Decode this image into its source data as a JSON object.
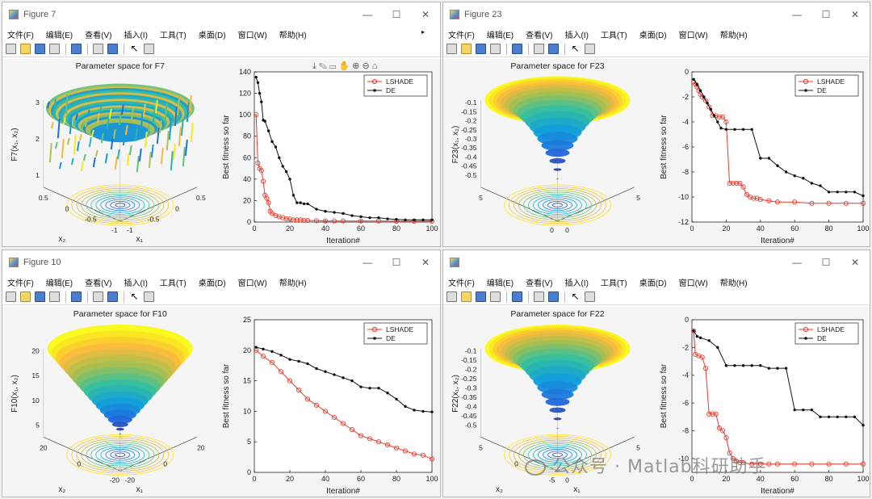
{
  "menu": [
    "文件(F)",
    "编辑(E)",
    "查看(V)",
    "插入(I)",
    "工具(T)",
    "桌面(D)",
    "窗口(W)",
    "帮助(H)"
  ],
  "windows": [
    {
      "title": "Figure 7",
      "surface_title": "Parameter space for F7",
      "surface_zlabel": "F7(x₁, x₂)",
      "surface_zticks": [
        "3",
        "2",
        "1"
      ],
      "surface_x1label": "x₁",
      "surface_x2label": "x₂",
      "surface_x1ticks": [
        "-1",
        "-0.5",
        "0",
        "0.5"
      ],
      "surface_x2ticks": [
        "0.5",
        "0",
        "-0.5",
        "-1"
      ],
      "surface_type": "rough"
    },
    {
      "title": "Figure 23",
      "surface_title": "Parameter space for F23",
      "surface_zlabel": "F23(x₁, x₂)",
      "surface_zticks": [
        "-0.1",
        "-0.15",
        "-0.2",
        "-0.25",
        "-0.3",
        "-0.35",
        "-0.4",
        "-0.45",
        "-0.5"
      ],
      "surface_x1label": "",
      "surface_x2label": "",
      "surface_x1ticks": [
        "0",
        "5"
      ],
      "surface_x2ticks": [
        "5",
        "0"
      ],
      "surface_type": "well"
    },
    {
      "title": "Figure 10",
      "surface_title": "Parameter space for F10",
      "surface_zlabel": "F10(x₁, x₂)",
      "surface_zticks": [
        "20",
        "15",
        "10",
        "5"
      ],
      "surface_x1label": "x₁",
      "surface_x2label": "x₂",
      "surface_x1ticks": [
        "-20",
        "0",
        "20"
      ],
      "surface_x2ticks": [
        "20",
        "0",
        "-20"
      ],
      "surface_type": "cone"
    },
    {
      "title": "",
      "surface_title": "Parameter space for F22",
      "surface_zlabel": "F22(x₁, x₂)",
      "surface_zticks": [
        "-0.1",
        "-0.15",
        "-0.2",
        "-0.25",
        "-0.3",
        "-0.35",
        "-0.4",
        "-0.45",
        "-0.5"
      ],
      "surface_x1label": "x₁",
      "surface_x2label": "x₂",
      "surface_x1ticks": [
        "0",
        "5"
      ],
      "surface_x2ticks": [
        "5",
        "0",
        "-5"
      ],
      "surface_type": "well"
    }
  ],
  "chart_data": [
    {
      "type": "line",
      "ylabel": "Best fitness so far",
      "xlabel": "Iteration#",
      "xlim": [
        0,
        100
      ],
      "ylim": [
        0,
        140
      ],
      "xticks": [
        "0",
        "20",
        "40",
        "60",
        "80",
        "100"
      ],
      "yticks": [
        "0",
        "20",
        "40",
        "60",
        "80",
        "100",
        "120",
        "140"
      ],
      "legend_position": "top-right",
      "series": [
        {
          "name": "LSHADE",
          "color": "#e8392b",
          "marker": "circle",
          "x": [
            1,
            2,
            3,
            4,
            5,
            6,
            7,
            8,
            9,
            10,
            12,
            14,
            16,
            18,
            20,
            22,
            24,
            26,
            28,
            30,
            35,
            40,
            45,
            50,
            60,
            70,
            80,
            90,
            100
          ],
          "y": [
            100,
            55,
            50,
            48,
            38,
            25,
            22,
            18,
            10,
            8,
            6,
            5,
            4,
            3,
            3,
            2,
            2,
            2,
            1.5,
            1.5,
            1.2,
            1,
            1,
            1,
            1,
            1,
            0.8,
            0.8,
            0.8
          ]
        },
        {
          "name": "DE",
          "color": "#111111",
          "marker": "dot",
          "x": [
            1,
            2,
            3,
            4,
            5,
            6,
            8,
            10,
            12,
            14,
            16,
            18,
            20,
            22,
            24,
            26,
            28,
            30,
            35,
            40,
            45,
            50,
            55,
            60,
            65,
            70,
            75,
            80,
            85,
            90,
            95,
            100
          ],
          "y": [
            135,
            130,
            120,
            112,
            95,
            94,
            85,
            75,
            70,
            60,
            52,
            47,
            40,
            25,
            18,
            18,
            17,
            17,
            12,
            10,
            9,
            8,
            6,
            5,
            4,
            4,
            3,
            2.5,
            2,
            2,
            2,
            2
          ]
        }
      ]
    },
    {
      "type": "line",
      "ylabel": "Best fitness so far",
      "xlabel": "Iteration#",
      "xlim": [
        0,
        100
      ],
      "ylim": [
        -12,
        0
      ],
      "xticks": [
        "0",
        "20",
        "40",
        "60",
        "80",
        "100"
      ],
      "yticks": [
        "0",
        "-2",
        "-4",
        "-6",
        "-8",
        "-10",
        "-12"
      ],
      "legend_position": "top-right",
      "series": [
        {
          "name": "LSHADE",
          "color": "#e8392b",
          "marker": "circle",
          "x": [
            1,
            2,
            3,
            4,
            5,
            6,
            8,
            10,
            12,
            14,
            16,
            18,
            20,
            22,
            24,
            26,
            28,
            30,
            32,
            34,
            36,
            38,
            40,
            45,
            50,
            60,
            70,
            80,
            90,
            100
          ],
          "y": [
            -0.8,
            -1,
            -1.2,
            -1.5,
            -1.8,
            -2,
            -2.3,
            -2.8,
            -3.5,
            -3.5,
            -3.6,
            -3.6,
            -4,
            -8.9,
            -8.9,
            -8.9,
            -8.9,
            -9.2,
            -9.8,
            -10,
            -10.1,
            -10.1,
            -10.2,
            -10.3,
            -10.4,
            -10.4,
            -10.5,
            -10.5,
            -10.5,
            -10.5
          ]
        },
        {
          "name": "DE",
          "color": "#111111",
          "marker": "dot",
          "x": [
            1,
            3,
            5,
            7,
            9,
            11,
            13,
            15,
            17,
            20,
            25,
            30,
            35,
            40,
            45,
            50,
            55,
            60,
            65,
            70,
            75,
            80,
            85,
            90,
            95,
            100
          ],
          "y": [
            -0.6,
            -1,
            -1.5,
            -2,
            -2.5,
            -3,
            -3.5,
            -4,
            -4.5,
            -4.6,
            -4.6,
            -4.6,
            -4.6,
            -6.9,
            -6.9,
            -7.5,
            -8,
            -8.3,
            -8.5,
            -8.9,
            -9.1,
            -9.6,
            -9.6,
            -9.6,
            -9.6,
            -9.9
          ]
        }
      ]
    },
    {
      "type": "line",
      "ylabel": "Best fitness so far",
      "xlabel": "Iteration#",
      "xlim": [
        0,
        100
      ],
      "ylim": [
        0,
        25
      ],
      "xticks": [
        "0",
        "20",
        "40",
        "60",
        "80",
        "100"
      ],
      "yticks": [
        "0",
        "5",
        "10",
        "15",
        "20",
        "25"
      ],
      "legend_position": "top-right",
      "series": [
        {
          "name": "LSHADE",
          "color": "#e8392b",
          "marker": "circle",
          "x": [
            1,
            5,
            10,
            15,
            20,
            25,
            30,
            35,
            40,
            45,
            50,
            55,
            60,
            65,
            70,
            75,
            80,
            85,
            90,
            95,
            100
          ],
          "y": [
            20,
            19,
            18,
            16.5,
            15,
            13.5,
            12,
            11,
            10,
            9,
            8,
            7,
            6,
            5.5,
            5,
            4.5,
            4,
            3.5,
            3,
            2.8,
            2.2
          ]
        },
        {
          "name": "DE",
          "color": "#111111",
          "marker": "dot",
          "x": [
            1,
            5,
            10,
            15,
            20,
            25,
            30,
            35,
            40,
            45,
            50,
            55,
            60,
            65,
            70,
            75,
            80,
            85,
            90,
            95,
            100
          ],
          "y": [
            20.5,
            20.2,
            19.8,
            19.2,
            18.5,
            18.2,
            17.8,
            17,
            16.5,
            16,
            15.5,
            15,
            14,
            13.8,
            13.8,
            13,
            12,
            10.8,
            10.2,
            10,
            9.9
          ]
        }
      ]
    },
    {
      "type": "line",
      "ylabel": "Best fitness so far",
      "xlabel": "Iteration#",
      "xlim": [
        0,
        100
      ],
      "ylim": [
        -11,
        0
      ],
      "xticks": [
        "0",
        "20",
        "40",
        "60",
        "80",
        "100"
      ],
      "yticks": [
        "0",
        "-2",
        "-4",
        "-6",
        "-8",
        "-10"
      ],
      "legend_position": "top-right",
      "series": [
        {
          "name": "LSHADE",
          "color": "#e8392b",
          "marker": "circle",
          "x": [
            1,
            2,
            4,
            6,
            8,
            10,
            12,
            14,
            16,
            18,
            20,
            22,
            24,
            26,
            28,
            30,
            35,
            40,
            45,
            50,
            60,
            70,
            80,
            90,
            100
          ],
          "y": [
            -0.8,
            -2.5,
            -2.6,
            -2.7,
            -3.5,
            -6.8,
            -6.8,
            -6.8,
            -7.8,
            -8,
            -8.5,
            -9.6,
            -10,
            -10.2,
            -10.3,
            -10.3,
            -10.4,
            -10.4,
            -10.4,
            -10.4,
            -10.4,
            -10.4,
            -10.4,
            -10.4,
            -10.4
          ]
        },
        {
          "name": "DE",
          "color": "#111111",
          "marker": "dot",
          "x": [
            1,
            3,
            5,
            10,
            15,
            20,
            25,
            30,
            35,
            40,
            45,
            50,
            55,
            60,
            65,
            70,
            75,
            80,
            85,
            90,
            95,
            100
          ],
          "y": [
            -0.8,
            -1.2,
            -1.3,
            -1.5,
            -2,
            -3.3,
            -3.3,
            -3.3,
            -3.3,
            -3.3,
            -3.5,
            -3.5,
            -3.5,
            -6.5,
            -6.5,
            -6.5,
            -7,
            -7,
            -7,
            -7,
            -7,
            -7.6
          ]
        }
      ]
    }
  ],
  "watermark": "公众号 · Matlab科研助手"
}
